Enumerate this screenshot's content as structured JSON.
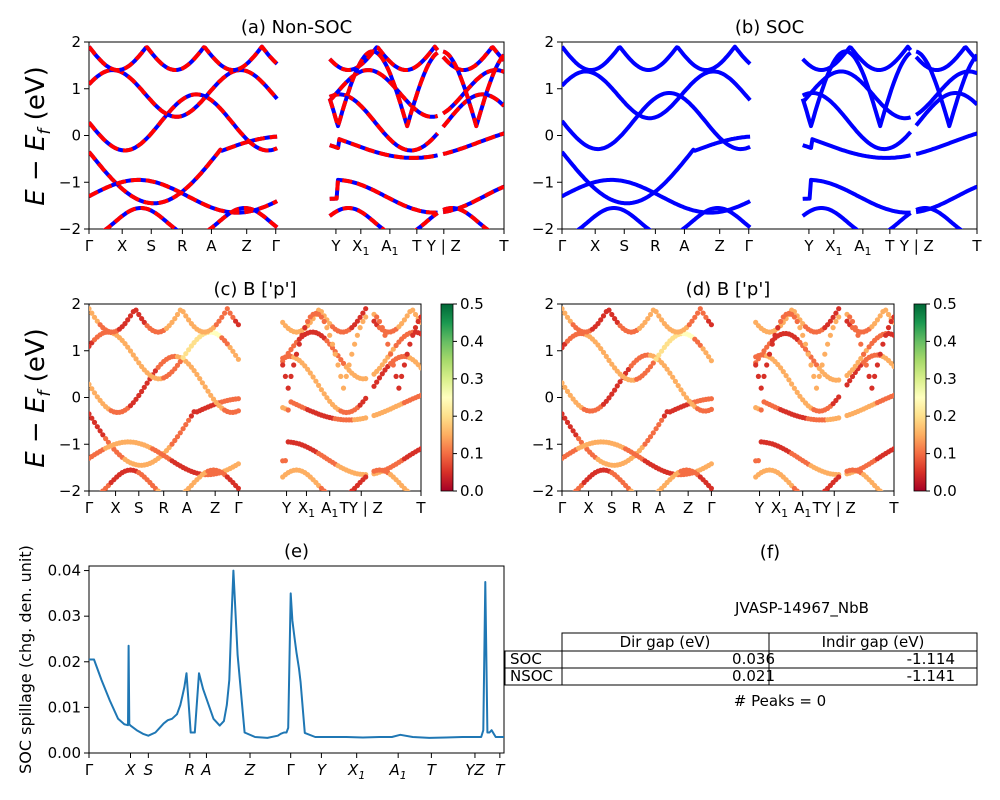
{
  "ylabel_energy": "E − E_f (eV)",
  "chart_data": [
    {
      "id": "a",
      "type": "line",
      "title": "(a) Non-SOC",
      "ylim": [
        -2,
        2
      ],
      "yticks": [
        -2,
        -1,
        0,
        1,
        2
      ],
      "kpoints": [
        {
          "label": "Γ",
          "x": 0.0
        },
        {
          "label": "X",
          "x": 0.08
        },
        {
          "label": "S",
          "x": 0.15
        },
        {
          "label": "R",
          "x": 0.225
        },
        {
          "label": "A",
          "x": 0.295
        },
        {
          "label": "Z",
          "x": 0.38
        },
        {
          "label": "Γ",
          "x": 0.45
        },
        {
          "label": "Y",
          "x": 0.595
        },
        {
          "label": "X",
          "sub": "1",
          "x": 0.655
        },
        {
          "label": "A",
          "sub": "1",
          "x": 0.725
        },
        {
          "label": "T",
          "x": 0.79
        },
        {
          "label": "Y | Z",
          "x": 0.855
        },
        {
          "label": "T",
          "x": 1.0
        }
      ],
      "series": [
        {
          "color": "#0000ff",
          "style": "solid"
        },
        {
          "color": "#ff0000",
          "style": "dashed"
        }
      ]
    },
    {
      "id": "b",
      "type": "line",
      "title": "(b) SOC",
      "ylim": [
        -2,
        2
      ],
      "yticks": [
        -2,
        -1,
        0,
        1,
        2
      ],
      "kpoints": [
        {
          "label": "Γ",
          "x": 0.0
        },
        {
          "label": "X",
          "x": 0.08
        },
        {
          "label": "S",
          "x": 0.15
        },
        {
          "label": "R",
          "x": 0.225
        },
        {
          "label": "A",
          "x": 0.295
        },
        {
          "label": "Z",
          "x": 0.38
        },
        {
          "label": "Γ",
          "x": 0.45
        },
        {
          "label": "Y",
          "x": 0.595
        },
        {
          "label": "X",
          "sub": "1",
          "x": 0.655
        },
        {
          "label": "A",
          "sub": "1",
          "x": 0.725
        },
        {
          "label": "T",
          "x": 0.79
        },
        {
          "label": "Y | Z",
          "x": 0.855
        },
        {
          "label": "T",
          "x": 1.0
        }
      ],
      "series": [
        {
          "color": "#0000ff",
          "style": "solid"
        }
      ]
    },
    {
      "id": "c",
      "type": "scatter",
      "title": "(c)  B ['p']",
      "ylim": [
        -2,
        2
      ],
      "yticks": [
        -2,
        -1,
        0,
        1,
        2
      ],
      "colorbar": {
        "cmap": "RdYlGn",
        "min": 0.0,
        "max": 0.5,
        "ticks": [
          "0.0",
          "0.1",
          "0.2",
          "0.3",
          "0.4",
          "0.5"
        ]
      },
      "kpoints": [
        {
          "label": "Γ",
          "x": 0.0
        },
        {
          "label": "X",
          "x": 0.08
        },
        {
          "label": "S",
          "x": 0.15
        },
        {
          "label": "R",
          "x": 0.225
        },
        {
          "label": "A",
          "x": 0.295
        },
        {
          "label": "Z",
          "x": 0.38
        },
        {
          "label": "Γ",
          "x": 0.45
        },
        {
          "label": "Y",
          "x": 0.595
        },
        {
          "label": "X",
          "sub": "1",
          "x": 0.655
        },
        {
          "label": "A",
          "sub": "1",
          "x": 0.725
        },
        {
          "label": "TY | Z",
          "x": 0.82
        },
        {
          "label": "T",
          "x": 1.0
        }
      ]
    },
    {
      "id": "d",
      "type": "scatter",
      "title": "(d) B ['p']",
      "ylim": [
        -2,
        2
      ],
      "yticks": [
        -2,
        -1,
        0,
        1,
        2
      ],
      "colorbar": {
        "cmap": "RdYlGn",
        "min": 0.0,
        "max": 0.5,
        "ticks": [
          "0.0",
          "0.1",
          "0.2",
          "0.3",
          "0.4",
          "0.5"
        ]
      },
      "kpoints": [
        {
          "label": "Γ",
          "x": 0.0
        },
        {
          "label": "X",
          "x": 0.08
        },
        {
          "label": "S",
          "x": 0.15
        },
        {
          "label": "R",
          "x": 0.225
        },
        {
          "label": "A",
          "x": 0.295
        },
        {
          "label": "Z",
          "x": 0.38
        },
        {
          "label": "Γ",
          "x": 0.45
        },
        {
          "label": "Y",
          "x": 0.595
        },
        {
          "label": "X",
          "sub": "1",
          "x": 0.655
        },
        {
          "label": "A",
          "sub": "1",
          "x": 0.725
        },
        {
          "label": "TY | Z",
          "x": 0.82
        },
        {
          "label": "T",
          "x": 1.0
        }
      ]
    },
    {
      "id": "e",
      "type": "line",
      "title": "(e)",
      "ylabel": "SOC spillage (chg. den. unit)",
      "ylim": [
        0.0,
        0.041
      ],
      "yticks": [
        "0.00",
        "0.01",
        "0.02",
        "0.03",
        "0.04"
      ],
      "kpoints": [
        {
          "label": "Γ",
          "x": 0.0,
          "italic": false
        },
        {
          "label": "X",
          "x": 0.1,
          "italic": true
        },
        {
          "label": "S",
          "x": 0.143,
          "italic": true
        },
        {
          "label": "R",
          "x": 0.243,
          "italic": true
        },
        {
          "label": "A",
          "x": 0.283,
          "italic": true
        },
        {
          "label": "Z",
          "x": 0.388,
          "italic": true
        },
        {
          "label": "Γ",
          "x": 0.486,
          "italic": false
        },
        {
          "label": "Y",
          "x": 0.56,
          "italic": true
        },
        {
          "label": "X",
          "sub": "1",
          "x": 0.645,
          "italic": true
        },
        {
          "label": "A",
          "sub": "1",
          "x": 0.745,
          "italic": true
        },
        {
          "label": "T",
          "x": 0.825,
          "italic": true
        },
        {
          "label": "YZ",
          "x": 0.93,
          "italic": true
        },
        {
          "label": "T",
          "x": 0.99,
          "italic": true
        }
      ],
      "x": [
        0.0,
        0.012,
        0.03,
        0.05,
        0.07,
        0.085,
        0.094,
        0.0955,
        0.097,
        0.1,
        0.115,
        0.13,
        0.143,
        0.16,
        0.17,
        0.18,
        0.19,
        0.2,
        0.212,
        0.22,
        0.225,
        0.23,
        0.235,
        0.245,
        0.255,
        0.265,
        0.275,
        0.3,
        0.315,
        0.325,
        0.332,
        0.338,
        0.343,
        0.348,
        0.358,
        0.375,
        0.4,
        0.43,
        0.455,
        0.462,
        0.47,
        0.476,
        0.48,
        0.486,
        0.49,
        0.495,
        0.5,
        0.506,
        0.51,
        0.52,
        0.545,
        0.58,
        0.62,
        0.66,
        0.7,
        0.73,
        0.75,
        0.78,
        0.82,
        0.86,
        0.9,
        0.92,
        0.94,
        0.945,
        0.95,
        0.955,
        0.96,
        0.965,
        0.97,
        0.98,
        1.0
      ],
      "values": [
        0.0205,
        0.0205,
        0.016,
        0.0115,
        0.0075,
        0.0063,
        0.0061,
        0.0235,
        0.0063,
        0.006,
        0.005,
        0.0042,
        0.0038,
        0.0045,
        0.0055,
        0.0065,
        0.0072,
        0.0075,
        0.0085,
        0.0105,
        0.0125,
        0.0145,
        0.0175,
        0.0045,
        0.0045,
        0.0175,
        0.014,
        0.0075,
        0.006,
        0.007,
        0.0105,
        0.016,
        0.0285,
        0.04,
        0.0215,
        0.0045,
        0.0035,
        0.0033,
        0.0038,
        0.0042,
        0.0045,
        0.0045,
        0.0055,
        0.035,
        0.029,
        0.0255,
        0.022,
        0.0185,
        0.0155,
        0.0044,
        0.0035,
        0.0035,
        0.0035,
        0.0034,
        0.0035,
        0.0035,
        0.004,
        0.0035,
        0.0033,
        0.0034,
        0.0035,
        0.0035,
        0.0035,
        0.0035,
        0.005,
        0.0375,
        0.0045,
        0.0045,
        0.005,
        0.0035,
        0.0035
      ],
      "color": "#1f77b4"
    }
  ],
  "panel_f": {
    "title": "(f)",
    "material": "JVASP-14967_NbB",
    "columns": [
      "Dir gap (eV)",
      "Indir gap (eV)"
    ],
    "rows": [
      {
        "label": "SOC",
        "dir": "0.036",
        "indir": "-1.114"
      },
      {
        "label": "NSOC",
        "dir": "0.021",
        "indir": "-1.141"
      }
    ],
    "peaks": "# Peaks = 0"
  }
}
